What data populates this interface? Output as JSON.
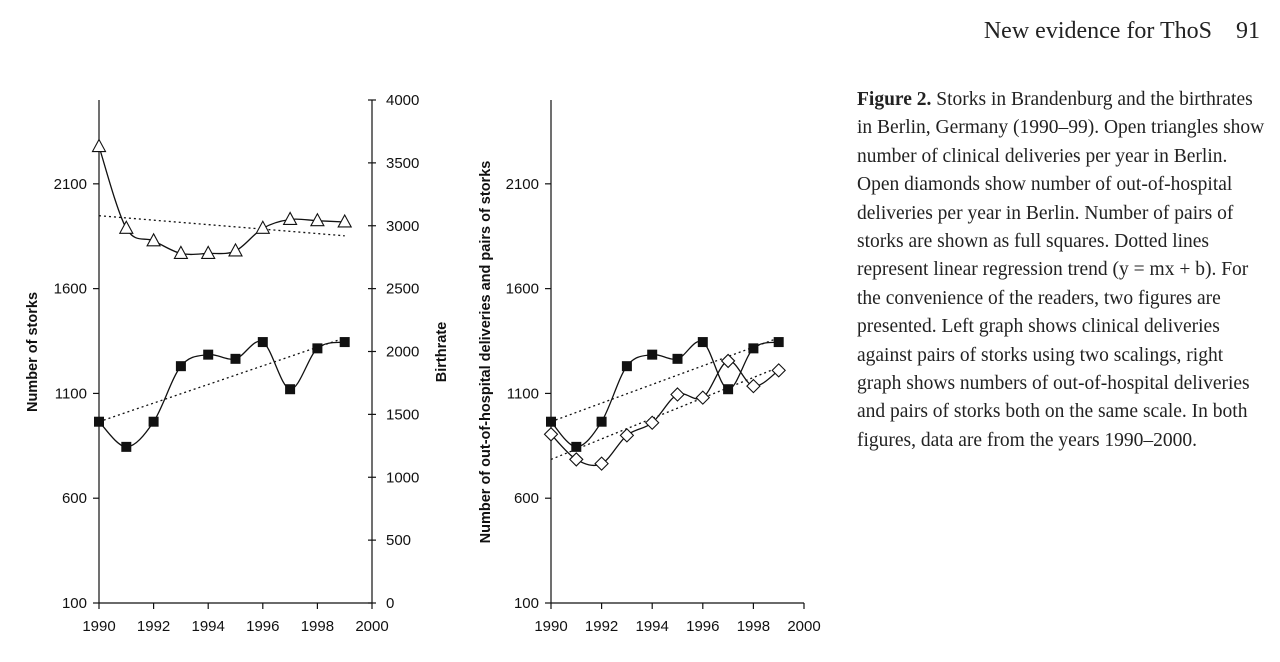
{
  "header": {
    "running_title": "New evidence for ThoS",
    "page_number": "91"
  },
  "caption": {
    "label": "Figure 2.",
    "text": "Storks in Brandenburg and the birthrates in Berlin, Germany (1990–99). Open triangles show number of clinical deliveries per year in Berlin. Open diamonds show number of out-of-hospital deliveries per year in Berlin. Number of pairs of storks are shown as full squares. Dotted lines represent linear regression trend (y = mx + b). For the convenience of the readers, two figures are presented. Left graph shows clinical deliveries against pairs of storks using two scalings, right graph shows numbers of out-of-hospital deliveries and pairs of storks both on the same scale. In both figures, data are from the years 1990–2000."
  },
  "chart_data": [
    {
      "type": "line",
      "x_ticks": [
        "1990",
        "1992",
        "1994",
        "1996",
        "1998",
        "2000"
      ],
      "xlim": [
        1990,
        2000
      ],
      "ylabel": "Number of storks",
      "ylim": [
        100,
        2500
      ],
      "y_ticks": [
        "100",
        "600",
        "1100",
        "1600",
        "2100"
      ],
      "y2label": "Birthrate",
      "y2lim": [
        0,
        4000
      ],
      "y2_ticks": [
        "0",
        "500",
        "1000",
        "1500",
        "2000",
        "2500",
        "3000",
        "3500",
        "4000"
      ],
      "series": [
        {
          "marker": "triangle-open",
          "axis": "right",
          "x": [
            1990,
            1991,
            1992,
            1993,
            1994,
            1995,
            1996,
            1997,
            1998,
            1999
          ],
          "values": [
            3630,
            2980,
            2880,
            2780,
            2780,
            2800,
            2980,
            3050,
            3040,
            3030
          ]
        },
        {
          "marker": "square-filled",
          "axis": "left",
          "x": [
            1990,
            1991,
            1992,
            1993,
            1994,
            1995,
            1996,
            1997,
            1998,
            1999
          ],
          "values": [
            965,
            845,
            965,
            1230,
            1285,
            1265,
            1345,
            1120,
            1315,
            1345
          ]
        }
      ],
      "trendlines": [
        {
          "axis": "right",
          "x": [
            1990,
            1999
          ],
          "values": [
            3080,
            2920
          ]
        },
        {
          "axis": "left",
          "x": [
            1990,
            1999
          ],
          "values": [
            965,
            1365
          ]
        }
      ]
    },
    {
      "type": "line",
      "x_ticks": [
        "1990",
        "1992",
        "1994",
        "1996",
        "1998",
        "2000"
      ],
      "xlim": [
        1990,
        2000
      ],
      "ylabel": "Number of out-of-hospital deliveries and pairs of storks",
      "ylim": [
        100,
        2500
      ],
      "y_ticks": [
        "100",
        "600",
        "1100",
        "1600",
        "2100"
      ],
      "series": [
        {
          "marker": "square-filled",
          "x": [
            1990,
            1991,
            1992,
            1993,
            1994,
            1995,
            1996,
            1997,
            1998,
            1999
          ],
          "values": [
            965,
            845,
            965,
            1230,
            1285,
            1265,
            1345,
            1120,
            1315,
            1345
          ]
        },
        {
          "marker": "diamond-open",
          "x": [
            1990,
            1991,
            1992,
            1993,
            1994,
            1995,
            1996,
            1997,
            1998,
            1999
          ],
          "values": [
            905,
            785,
            765,
            900,
            960,
            1095,
            1080,
            1255,
            1135,
            1210
          ]
        }
      ],
      "trendlines": [
        {
          "x": [
            1990,
            1999
          ],
          "values": [
            965,
            1365
          ]
        },
        {
          "x": [
            1990,
            1999
          ],
          "values": [
            785,
            1225
          ]
        }
      ]
    }
  ]
}
